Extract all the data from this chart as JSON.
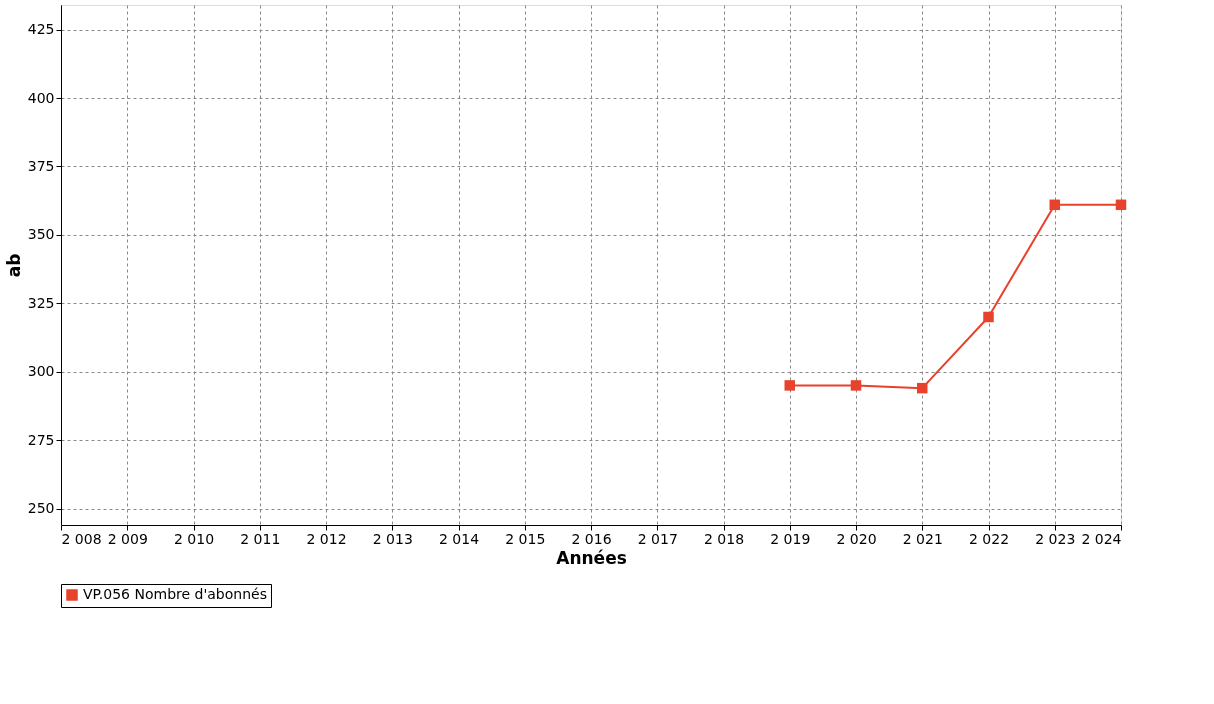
{
  "chart_data": {
    "type": "line",
    "xlabel": "Années",
    "ylabel": "ab",
    "x": [
      2019,
      2020,
      2021,
      2022,
      2023,
      2024
    ],
    "series": [
      {
        "name": "VP.056 Nombre d'abonnés",
        "color": "#e8412c",
        "values": [
          295,
          295,
          294,
          320,
          361,
          361
        ]
      }
    ],
    "xlim": [
      2008,
      2024
    ],
    "ylim": [
      244,
      434
    ],
    "xticks": [
      {
        "value": 2008,
        "label": "2 008"
      },
      {
        "value": 2009,
        "label": "2 009"
      },
      {
        "value": 2010,
        "label": "2 010"
      },
      {
        "value": 2011,
        "label": "2 011"
      },
      {
        "value": 2012,
        "label": "2 012"
      },
      {
        "value": 2013,
        "label": "2 013"
      },
      {
        "value": 2014,
        "label": "2 014"
      },
      {
        "value": 2015,
        "label": "2 015"
      },
      {
        "value": 2016,
        "label": "2 016"
      },
      {
        "value": 2017,
        "label": "2 017"
      },
      {
        "value": 2018,
        "label": "2 018"
      },
      {
        "value": 2019,
        "label": "2 019"
      },
      {
        "value": 2020,
        "label": "2 020"
      },
      {
        "value": 2021,
        "label": "2 021"
      },
      {
        "value": 2022,
        "label": "2 022"
      },
      {
        "value": 2023,
        "label": "2 023"
      },
      {
        "value": 2024,
        "label": "2 024"
      }
    ],
    "yticks": [
      250,
      275,
      300,
      325,
      350,
      375,
      400,
      425
    ],
    "grid": true,
    "legend": "bottom",
    "marker": "square",
    "line_style": "solid"
  }
}
